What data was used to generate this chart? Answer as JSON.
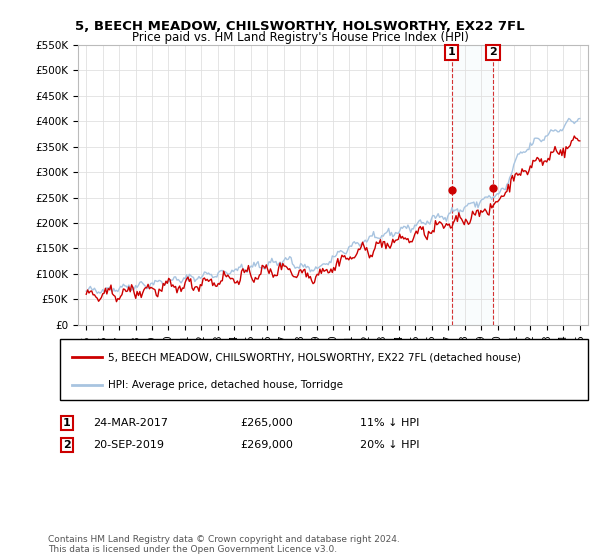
{
  "title": "5, BEECH MEADOW, CHILSWORTHY, HOLSWORTHY, EX22 7FL",
  "subtitle": "Price paid vs. HM Land Registry's House Price Index (HPI)",
  "ylim": [
    0,
    550000
  ],
  "yticks": [
    0,
    50000,
    100000,
    150000,
    200000,
    250000,
    300000,
    350000,
    400000,
    450000,
    500000,
    550000
  ],
  "ytick_labels": [
    "£0",
    "£50K",
    "£100K",
    "£150K",
    "£200K",
    "£250K",
    "£300K",
    "£350K",
    "£400K",
    "£450K",
    "£500K",
    "£550K"
  ],
  "hpi_color": "#a8c4e0",
  "price_color": "#cc0000",
  "annotation1_date": "24-MAR-2017",
  "annotation1_price": "£265,000",
  "annotation1_hpi": "11% ↓ HPI",
  "annotation1_year": 2017.22,
  "annotation1_value": 265000,
  "annotation2_date": "20-SEP-2019",
  "annotation2_price": "£269,000",
  "annotation2_hpi": "20% ↓ HPI",
  "annotation2_year": 2019.72,
  "annotation2_value": 269000,
  "legend_label1": "5, BEECH MEADOW, CHILSWORTHY, HOLSWORTHY, EX22 7FL (detached house)",
  "legend_label2": "HPI: Average price, detached house, Torridge",
  "footnote": "Contains HM Land Registry data © Crown copyright and database right 2024.\nThis data is licensed under the Open Government Licence v3.0.",
  "background_color": "#ffffff",
  "grid_color": "#e0e0e0",
  "xlim_left": 1994.5,
  "xlim_right": 2025.5
}
